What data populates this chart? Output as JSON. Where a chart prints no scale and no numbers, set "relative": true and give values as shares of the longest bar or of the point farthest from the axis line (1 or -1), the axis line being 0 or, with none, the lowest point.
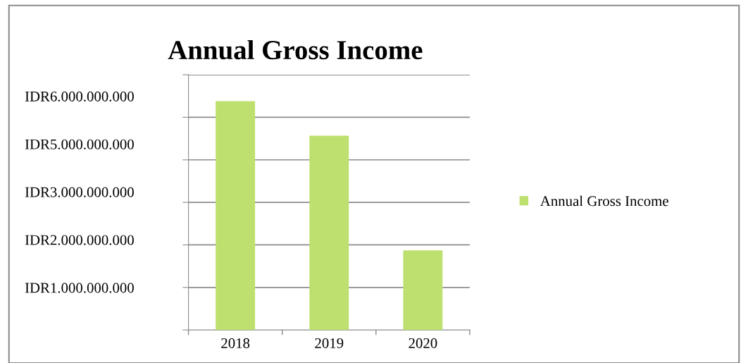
{
  "chart_data": {
    "type": "bar",
    "title": "Annual Gross Income",
    "relative": true,
    "categories": [
      "2018",
      "2019",
      "2020"
    ],
    "series": [
      {
        "name": "Annual Gross Income",
        "color": "#bde06f",
        "values": [
          1,
          0.849,
          0.348
        ]
      }
    ],
    "annotations": [
      "IDR6.000.000.000",
      "IDR5.000.000.000",
      "IDR3.000.000.000",
      "IDR2.000.000.000",
      "IDR1.000.000.000"
    ],
    "grid": "y",
    "legend": "right"
  }
}
